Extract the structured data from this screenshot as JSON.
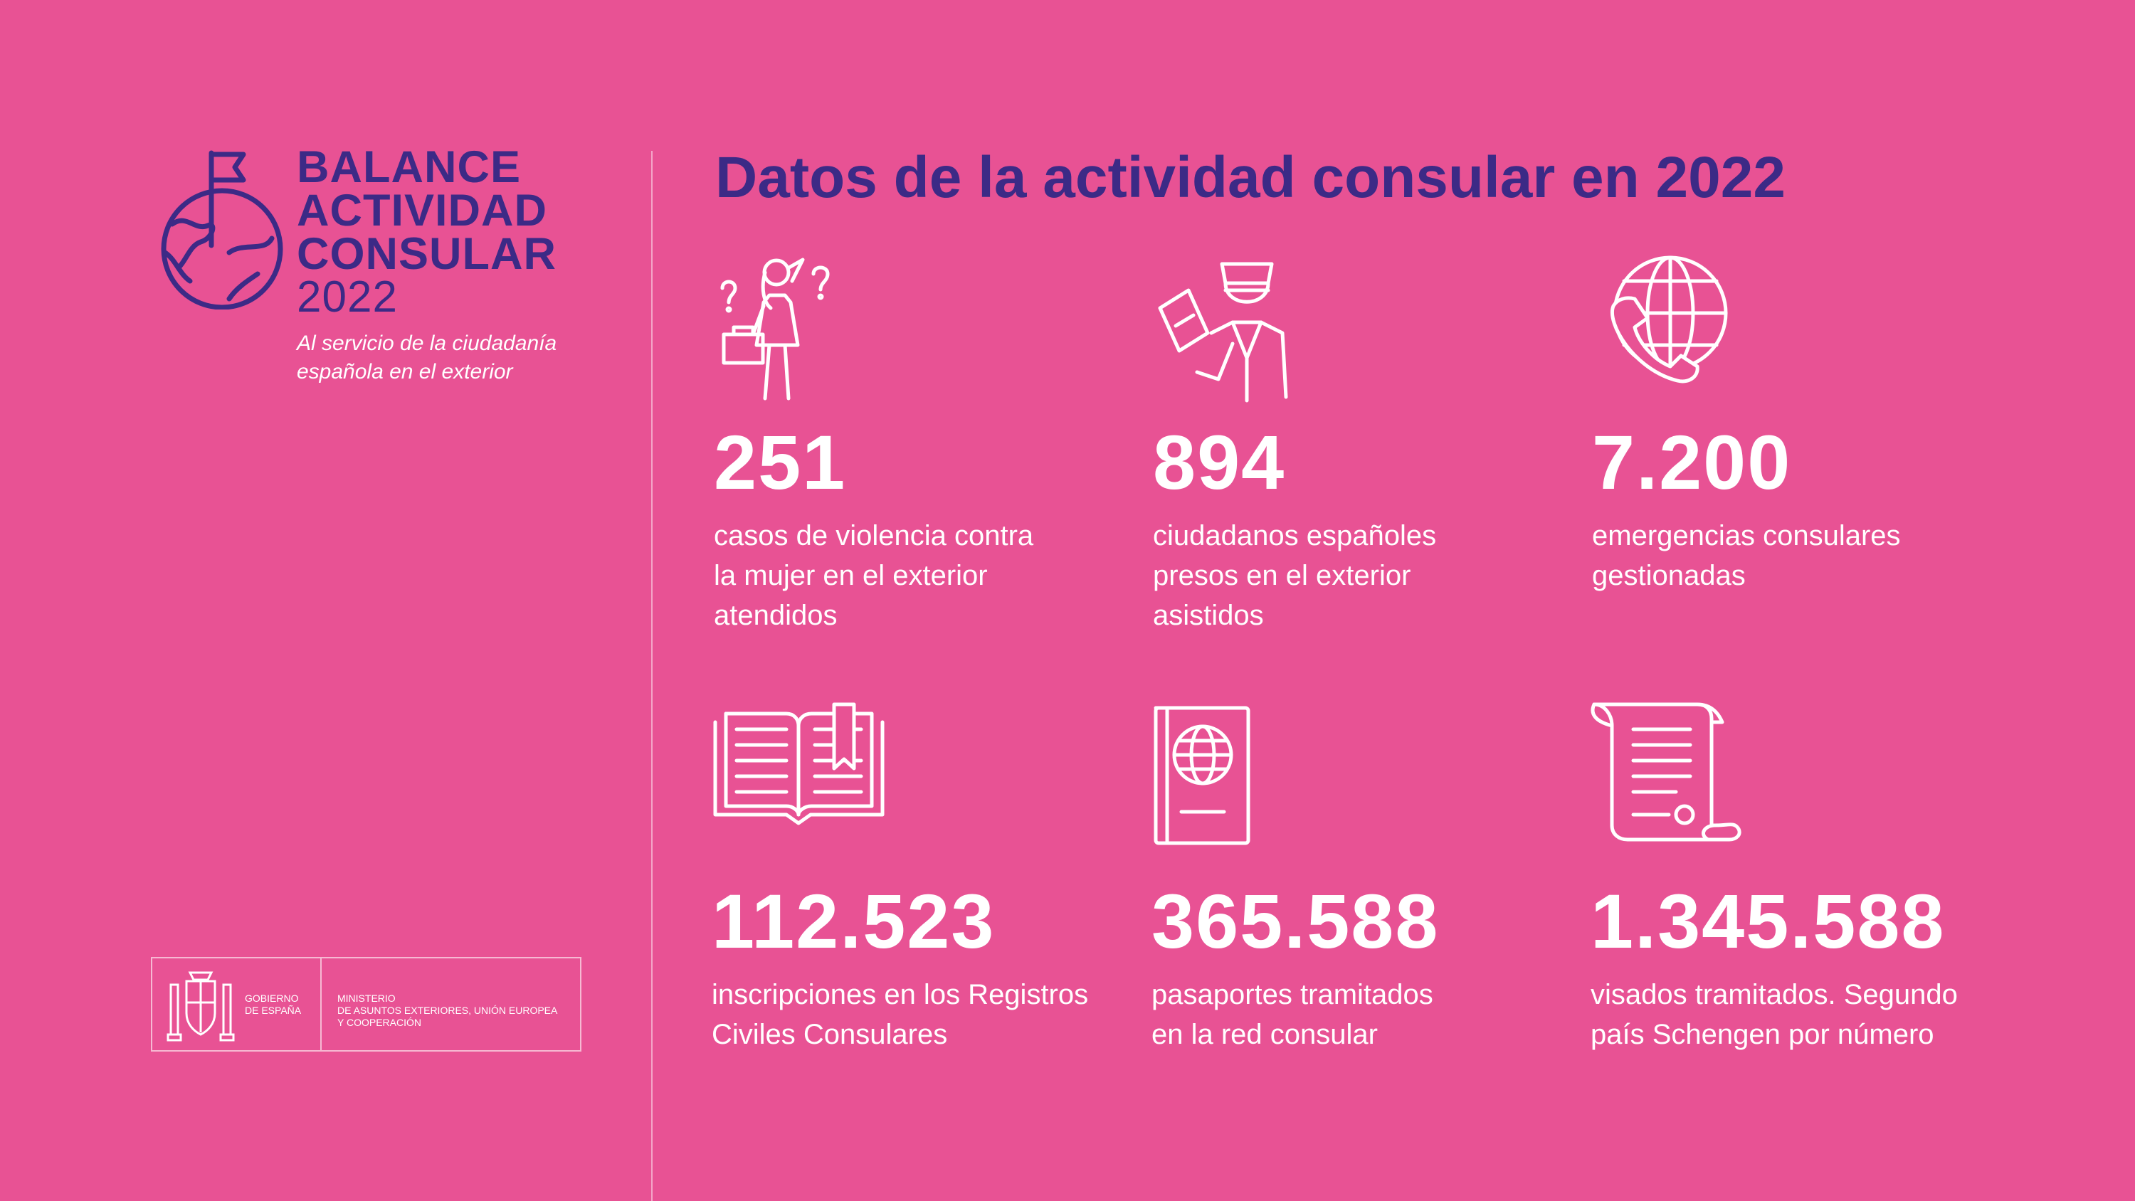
{
  "brand": {
    "title_lines": [
      "BALANCE",
      "ACTIVIDAD",
      "CONSULAR"
    ],
    "year": "2022",
    "subtitle_lines": [
      "Al servicio de la ciudadanía",
      "española en el exterior"
    ]
  },
  "government": {
    "name_lines": [
      "GOBIERNO",
      "DE ESPAÑA"
    ],
    "ministry_lines": [
      "MINISTERIO",
      "DE ASUNTOS EXTERIORES, UNIÓN EUROPEA",
      "Y COOPERACIÓN"
    ]
  },
  "main_title": "Datos de la actividad consular en 2022",
  "colors": {
    "background": "#E85294",
    "accent": "#3C2A86",
    "text": "#FFFFFF"
  },
  "stats": [
    {
      "icon": "woman-questions-icon",
      "value": "251",
      "text_lines": [
        "casos de violencia contra",
        "la mujer en el exterior",
        "atendidos"
      ]
    },
    {
      "icon": "officer-passport-icon",
      "value": "894",
      "text_lines": [
        "ciudadanos españoles",
        "presos en el exterior",
        "asistidos"
      ]
    },
    {
      "icon": "phone-globe-icon",
      "value": "7.200",
      "text_lines": [
        "emergencias consulares",
        "gestionadas"
      ]
    },
    {
      "icon": "open-book-icon",
      "value": "112.523",
      "text_lines": [
        "inscripciones en los Registros",
        "Civiles Consulares"
      ]
    },
    {
      "icon": "passport-icon",
      "value": "365.588",
      "text_lines": [
        "pasaportes tramitados",
        "en la red consular"
      ]
    },
    {
      "icon": "scroll-document-icon",
      "value": "1.345.588",
      "text_lines": [
        "visados tramitados. Segundo",
        "país Schengen por número"
      ]
    }
  ]
}
